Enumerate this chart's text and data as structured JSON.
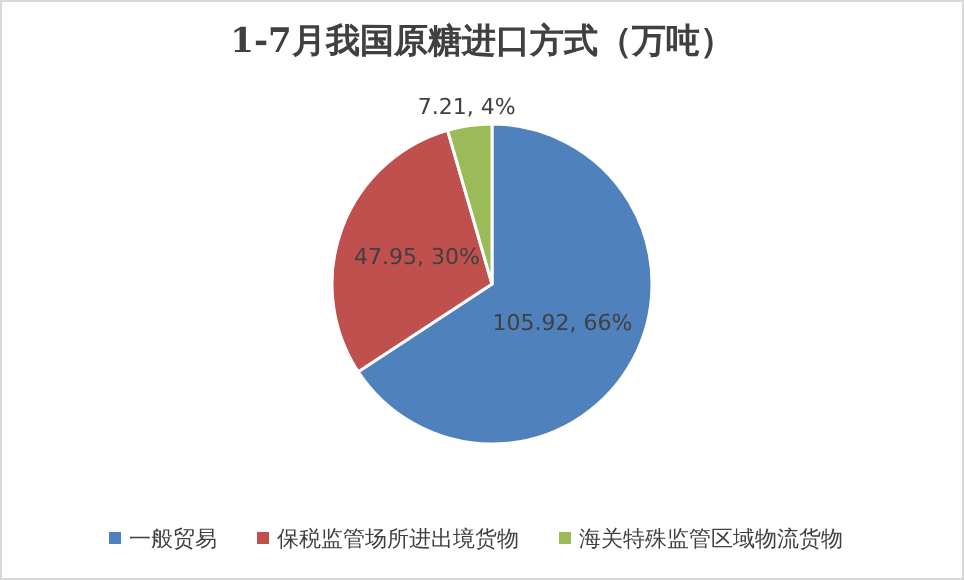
{
  "chart_data": {
    "type": "pie",
    "title": "1-7月我国原糖进口方式（万吨）",
    "categories": [
      "一般贸易",
      "保税监管场所进出境货物",
      "海关特殊监管区域物流货物"
    ],
    "values": [
      105.92,
      47.95,
      7.21
    ],
    "colors": [
      "#4f81bd",
      "#c0504d",
      "#9bbb59"
    ],
    "value_labels": [
      "105.92, 66%",
      "47.95, 30%",
      "7.21, 4%"
    ],
    "legend": "bottom"
  }
}
